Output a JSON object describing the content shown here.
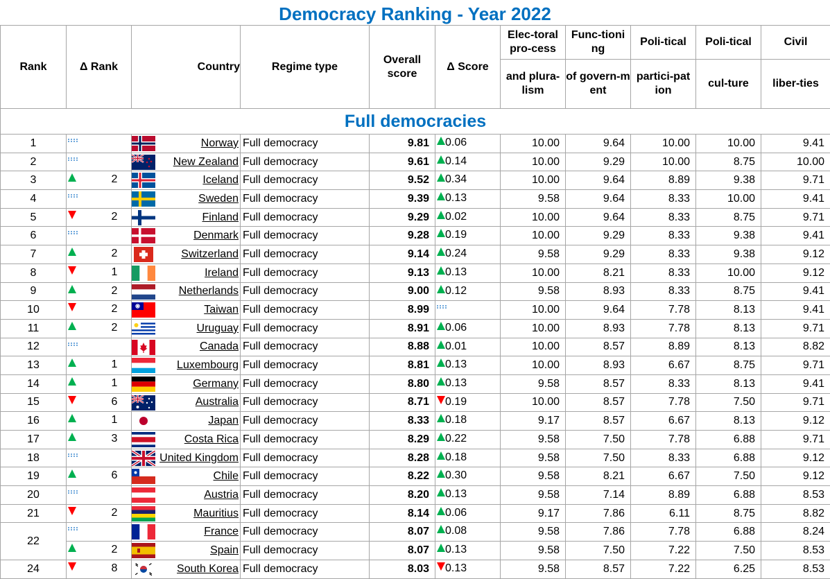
{
  "title": "Democracy Ranking - Year 2022",
  "headers": {
    "rank": "Rank",
    "delta_rank": "Δ Rank",
    "country": "Country",
    "regime_type": "Regime type",
    "overall_score": "Overall score",
    "delta_score": "Δ Score",
    "electoral_top": "Elec-toral pro-cess",
    "electoral_bottom": "and plura-lism",
    "functioning_top": "Func-tioni ng",
    "functioning_bottom": "of govern-m ent",
    "participation_top": "Poli-tical",
    "participation_bottom": "partici-pat ion",
    "culture_top": "Poli-tical",
    "culture_bottom": "cul-ture",
    "civil_top": "Civil",
    "civil_bottom": "liber-ties"
  },
  "section": "Full democracies",
  "colors": {
    "title": "#0070c0",
    "up": "#00b050",
    "down": "#ff0000",
    "flat": "#6fa8dc"
  },
  "rows": [
    {
      "rank": "1",
      "dir": "flat",
      "delta_rank": "",
      "country": "Norway",
      "flag": "norway",
      "regime": "Full democracy",
      "overall": "9.81",
      "sdir": "up",
      "delta_score": "0.06",
      "electoral": "10.00",
      "functioning": "9.64",
      "participation": "10.00",
      "culture": "10.00",
      "civil": "9.41"
    },
    {
      "rank": "2",
      "dir": "flat",
      "delta_rank": "",
      "country": "New Zealand",
      "flag": "new-zealand",
      "regime": "Full democracy",
      "overall": "9.61",
      "sdir": "up",
      "delta_score": "0.14",
      "electoral": "10.00",
      "functioning": "9.29",
      "participation": "10.00",
      "culture": "8.75",
      "civil": "10.00"
    },
    {
      "rank": "3",
      "dir": "up",
      "delta_rank": "2",
      "country": "Iceland",
      "flag": "iceland",
      "regime": "Full democracy",
      "overall": "9.52",
      "sdir": "up",
      "delta_score": "0.34",
      "electoral": "10.00",
      "functioning": "9.64",
      "participation": "8.89",
      "culture": "9.38",
      "civil": "9.71"
    },
    {
      "rank": "4",
      "dir": "flat",
      "delta_rank": "",
      "country": "Sweden",
      "flag": "sweden",
      "regime": "Full democracy",
      "overall": "9.39",
      "sdir": "up",
      "delta_score": "0.13",
      "electoral": "9.58",
      "functioning": "9.64",
      "participation": "8.33",
      "culture": "10.00",
      "civil": "9.41"
    },
    {
      "rank": "5",
      "dir": "down",
      "delta_rank": "2",
      "country": "Finland",
      "flag": "finland",
      "regime": "Full democracy",
      "overall": "9.29",
      "sdir": "up",
      "delta_score": "0.02",
      "electoral": "10.00",
      "functioning": "9.64",
      "participation": "8.33",
      "culture": "8.75",
      "civil": "9.71"
    },
    {
      "rank": "6",
      "dir": "flat",
      "delta_rank": "",
      "country": "Denmark",
      "flag": "denmark",
      "regime": "Full democracy",
      "overall": "9.28",
      "sdir": "up",
      "delta_score": "0.19",
      "electoral": "10.00",
      "functioning": "9.29",
      "participation": "8.33",
      "culture": "9.38",
      "civil": "9.41"
    },
    {
      "rank": "7",
      "dir": "up",
      "delta_rank": "2",
      "country": "Switzerland",
      "flag": "switzerland",
      "regime": "Full democracy",
      "overall": "9.14",
      "sdir": "up",
      "delta_score": "0.24",
      "electoral": "9.58",
      "functioning": "9.29",
      "participation": "8.33",
      "culture": "9.38",
      "civil": "9.12"
    },
    {
      "rank": "8",
      "dir": "down",
      "delta_rank": "1",
      "country": "Ireland",
      "flag": "ireland",
      "regime": "Full democracy",
      "overall": "9.13",
      "sdir": "up",
      "delta_score": "0.13",
      "electoral": "10.00",
      "functioning": "8.21",
      "participation": "8.33",
      "culture": "10.00",
      "civil": "9.12"
    },
    {
      "rank": "9",
      "dir": "up",
      "delta_rank": "2",
      "country": "Netherlands",
      "flag": "netherlands",
      "regime": "Full democracy",
      "overall": "9.00",
      "sdir": "up",
      "delta_score": "0.12",
      "electoral": "9.58",
      "functioning": "8.93",
      "participation": "8.33",
      "culture": "8.75",
      "civil": "9.41"
    },
    {
      "rank": "10",
      "dir": "down",
      "delta_rank": "2",
      "country": "Taiwan",
      "flag": "taiwan",
      "regime": "Full democracy",
      "overall": "8.99",
      "sdir": "flat",
      "delta_score": "",
      "electoral": "10.00",
      "functioning": "9.64",
      "participation": "7.78",
      "culture": "8.13",
      "civil": "9.41"
    },
    {
      "rank": "11",
      "dir": "up",
      "delta_rank": "2",
      "country": "Uruguay",
      "flag": "uruguay",
      "regime": "Full democracy",
      "overall": "8.91",
      "sdir": "up",
      "delta_score": "0.06",
      "electoral": "10.00",
      "functioning": "8.93",
      "participation": "7.78",
      "culture": "8.13",
      "civil": "9.71"
    },
    {
      "rank": "12",
      "dir": "flat",
      "delta_rank": "",
      "country": "Canada",
      "flag": "canada",
      "regime": "Full democracy",
      "overall": "8.88",
      "sdir": "up",
      "delta_score": "0.01",
      "electoral": "10.00",
      "functioning": "8.57",
      "participation": "8.89",
      "culture": "8.13",
      "civil": "8.82"
    },
    {
      "rank": "13",
      "dir": "up",
      "delta_rank": "1",
      "country": "Luxembourg",
      "flag": "luxembourg",
      "regime": "Full democracy",
      "overall": "8.81",
      "sdir": "up",
      "delta_score": "0.13",
      "electoral": "10.00",
      "functioning": "8.93",
      "participation": "6.67",
      "culture": "8.75",
      "civil": "9.71"
    },
    {
      "rank": "14",
      "dir": "up",
      "delta_rank": "1",
      "country": "Germany",
      "flag": "germany",
      "regime": "Full democracy",
      "overall": "8.80",
      "sdir": "up",
      "delta_score": "0.13",
      "electoral": "9.58",
      "functioning": "8.57",
      "participation": "8.33",
      "culture": "8.13",
      "civil": "9.41"
    },
    {
      "rank": "15",
      "dir": "down",
      "delta_rank": "6",
      "country": "Australia",
      "flag": "australia",
      "regime": "Full democracy",
      "overall": "8.71",
      "sdir": "down",
      "delta_score": "0.19",
      "electoral": "10.00",
      "functioning": "8.57",
      "participation": "7.78",
      "culture": "7.50",
      "civil": "9.71"
    },
    {
      "rank": "16",
      "dir": "up",
      "delta_rank": "1",
      "country": "Japan",
      "flag": "japan",
      "regime": "Full democracy",
      "overall": "8.33",
      "sdir": "up",
      "delta_score": "0.18",
      "electoral": "9.17",
      "functioning": "8.57",
      "participation": "6.67",
      "culture": "8.13",
      "civil": "9.12"
    },
    {
      "rank": "17",
      "dir": "up",
      "delta_rank": "3",
      "country": "Costa Rica",
      "flag": "costa-rica",
      "regime": "Full democracy",
      "overall": "8.29",
      "sdir": "up",
      "delta_score": "0.22",
      "electoral": "9.58",
      "functioning": "7.50",
      "participation": "7.78",
      "culture": "6.88",
      "civil": "9.71"
    },
    {
      "rank": "18",
      "dir": "flat",
      "delta_rank": "",
      "country": "United Kingdom",
      "flag": "uk",
      "regime": "Full democracy",
      "overall": "8.28",
      "sdir": "up",
      "delta_score": "0.18",
      "electoral": "9.58",
      "functioning": "7.50",
      "participation": "8.33",
      "culture": "6.88",
      "civil": "9.12"
    },
    {
      "rank": "19",
      "dir": "up",
      "delta_rank": "6",
      "country": "Chile",
      "flag": "chile",
      "regime": "Full democracy",
      "overall": "8.22",
      "sdir": "up",
      "delta_score": "0.30",
      "electoral": "9.58",
      "functioning": "8.21",
      "participation": "6.67",
      "culture": "7.50",
      "civil": "9.12"
    },
    {
      "rank": "20",
      "dir": "flat",
      "delta_rank": "",
      "country": "Austria",
      "flag": "austria",
      "regime": "Full democracy",
      "overall": "8.20",
      "sdir": "up",
      "delta_score": "0.13",
      "electoral": "9.58",
      "functioning": "7.14",
      "participation": "8.89",
      "culture": "6.88",
      "civil": "8.53"
    },
    {
      "rank": "21",
      "dir": "down",
      "delta_rank": "2",
      "country": "Mauritius",
      "flag": "mauritius",
      "regime": "Full democracy",
      "overall": "8.14",
      "sdir": "up",
      "delta_score": "0.06",
      "electoral": "9.17",
      "functioning": "7.86",
      "participation": "6.11",
      "culture": "8.75",
      "civil": "8.82"
    },
    {
      "rank": "22",
      "dir": "flat",
      "delta_rank": "",
      "country": "France",
      "flag": "france",
      "regime": "Full democracy",
      "overall": "8.07",
      "sdir": "up",
      "delta_score": "0.08",
      "electoral": "9.58",
      "functioning": "7.86",
      "participation": "7.78",
      "culture": "6.88",
      "civil": "8.24"
    },
    {
      "rank": "",
      "dir": "up",
      "delta_rank": "2",
      "country": "Spain",
      "flag": "spain",
      "regime": "Full democracy",
      "overall": "8.07",
      "sdir": "up",
      "delta_score": "0.13",
      "electoral": "9.58",
      "functioning": "7.50",
      "participation": "7.22",
      "culture": "7.50",
      "civil": "8.53"
    },
    {
      "rank": "24",
      "dir": "down",
      "delta_rank": "8",
      "country": "South Korea",
      "flag": "south-korea",
      "regime": "Full democracy",
      "overall": "8.03",
      "sdir": "down",
      "delta_score": "0.13",
      "electoral": "9.58",
      "functioning": "8.57",
      "participation": "7.22",
      "culture": "6.25",
      "civil": "8.53"
    }
  ]
}
